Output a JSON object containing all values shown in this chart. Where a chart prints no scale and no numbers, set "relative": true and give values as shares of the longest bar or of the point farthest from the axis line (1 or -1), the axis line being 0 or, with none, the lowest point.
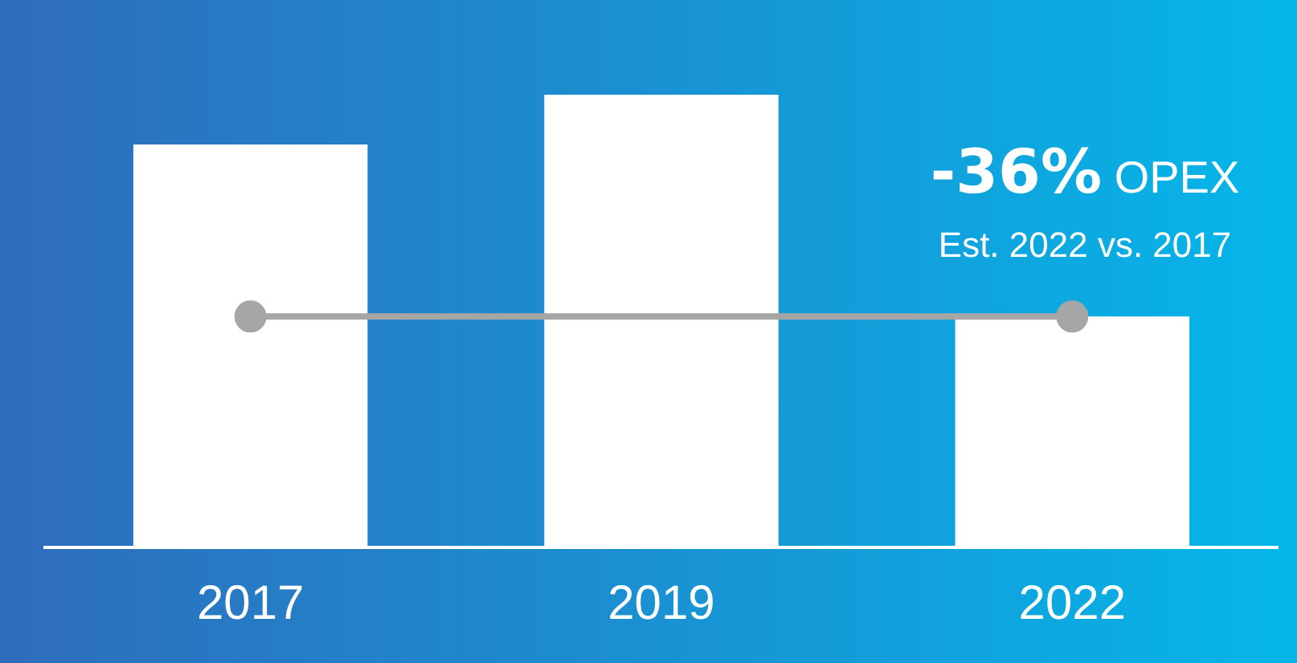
{
  "chart_data": {
    "type": "bar",
    "relative": true,
    "categories": [
      "2017",
      "2019",
      "2022"
    ],
    "series": [
      {
        "color": "#ffffff",
        "values": [
          0.89,
          1,
          0.51
        ]
      },
      {
        "type": "line",
        "color": "#a6a6a6",
        "values": [
          0.51,
          null,
          0.51
        ]
      }
    ],
    "marker": "circle",
    "line_style": "solid",
    "annotations": [
      "-36% OPEX",
      "Est. 2022 vs. 2017"
    ],
    "grid": false,
    "legend": false
  }
}
